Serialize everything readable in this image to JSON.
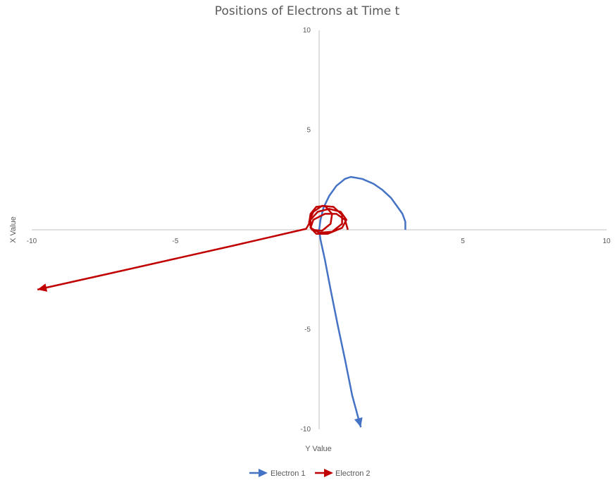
{
  "chart_data": {
    "type": "scatter",
    "title": "Positions of Electrons at Time t",
    "xlabel": "Y Value",
    "ylabel": "X Value",
    "xlim": [
      -10,
      10
    ],
    "ylim": [
      -10,
      10
    ],
    "x_ticks": [
      "-10",
      "-5",
      "5",
      "10"
    ],
    "y_ticks": [
      "10",
      "5",
      "-5",
      "-10"
    ],
    "grid": false,
    "legend_position": "bottom",
    "series": [
      {
        "name": "Electron 1",
        "color": "#4472C4",
        "marker": "line-with-arrow-end",
        "points": [
          [
            3.0,
            0.0
          ],
          [
            3.0,
            0.4
          ],
          [
            2.9,
            0.8
          ],
          [
            2.7,
            1.2
          ],
          [
            2.5,
            1.6
          ],
          [
            2.2,
            2.0
          ],
          [
            1.9,
            2.3
          ],
          [
            1.5,
            2.55
          ],
          [
            1.1,
            2.65
          ],
          [
            0.9,
            2.55
          ],
          [
            0.6,
            2.2
          ],
          [
            0.35,
            1.7
          ],
          [
            0.15,
            1.1
          ],
          [
            0.05,
            0.5
          ],
          [
            0.0,
            0.0
          ],
          [
            0.05,
            -0.5
          ],
          [
            0.2,
            -1.5
          ],
          [
            0.4,
            -3.0
          ],
          [
            0.65,
            -4.8
          ],
          [
            0.9,
            -6.5
          ],
          [
            1.15,
            -8.3
          ],
          [
            1.45,
            -9.9
          ]
        ]
      },
      {
        "name": "Electron 2",
        "color": "#C00000",
        "marker": "line-with-arrow-end",
        "points": [
          [
            1.0,
            0.0
          ],
          [
            0.9,
            0.5
          ],
          [
            0.6,
            0.8
          ],
          [
            0.2,
            0.8
          ],
          [
            -0.2,
            0.5
          ],
          [
            -0.3,
            0.1
          ],
          [
            -0.1,
            -0.2
          ],
          [
            0.3,
            -0.2
          ],
          [
            0.8,
            0.1
          ],
          [
            0.95,
            0.5
          ],
          [
            0.75,
            0.9
          ],
          [
            0.35,
            1.05
          ],
          [
            -0.05,
            0.9
          ],
          [
            -0.3,
            0.5
          ],
          [
            -0.3,
            0.1
          ],
          [
            0.0,
            -0.15
          ],
          [
            0.45,
            -0.1
          ],
          [
            0.8,
            0.3
          ],
          [
            0.8,
            0.75
          ],
          [
            0.5,
            1.15
          ],
          [
            0.1,
            1.2
          ],
          [
            -0.2,
            0.9
          ],
          [
            -0.35,
            0.4
          ],
          [
            -0.25,
            0.0
          ],
          [
            0.1,
            -0.05
          ],
          [
            0.4,
            0.3
          ],
          [
            0.45,
            0.8
          ],
          [
            0.2,
            1.2
          ],
          [
            -0.1,
            1.15
          ],
          [
            -0.3,
            0.8
          ],
          [
            -0.35,
            0.3
          ],
          [
            -0.45,
            0.05
          ],
          [
            -1.5,
            -0.3
          ],
          [
            -3.0,
            -0.8
          ],
          [
            -5.0,
            -1.45
          ],
          [
            -7.0,
            -2.1
          ],
          [
            -9.8,
            -3.0
          ]
        ]
      }
    ]
  }
}
